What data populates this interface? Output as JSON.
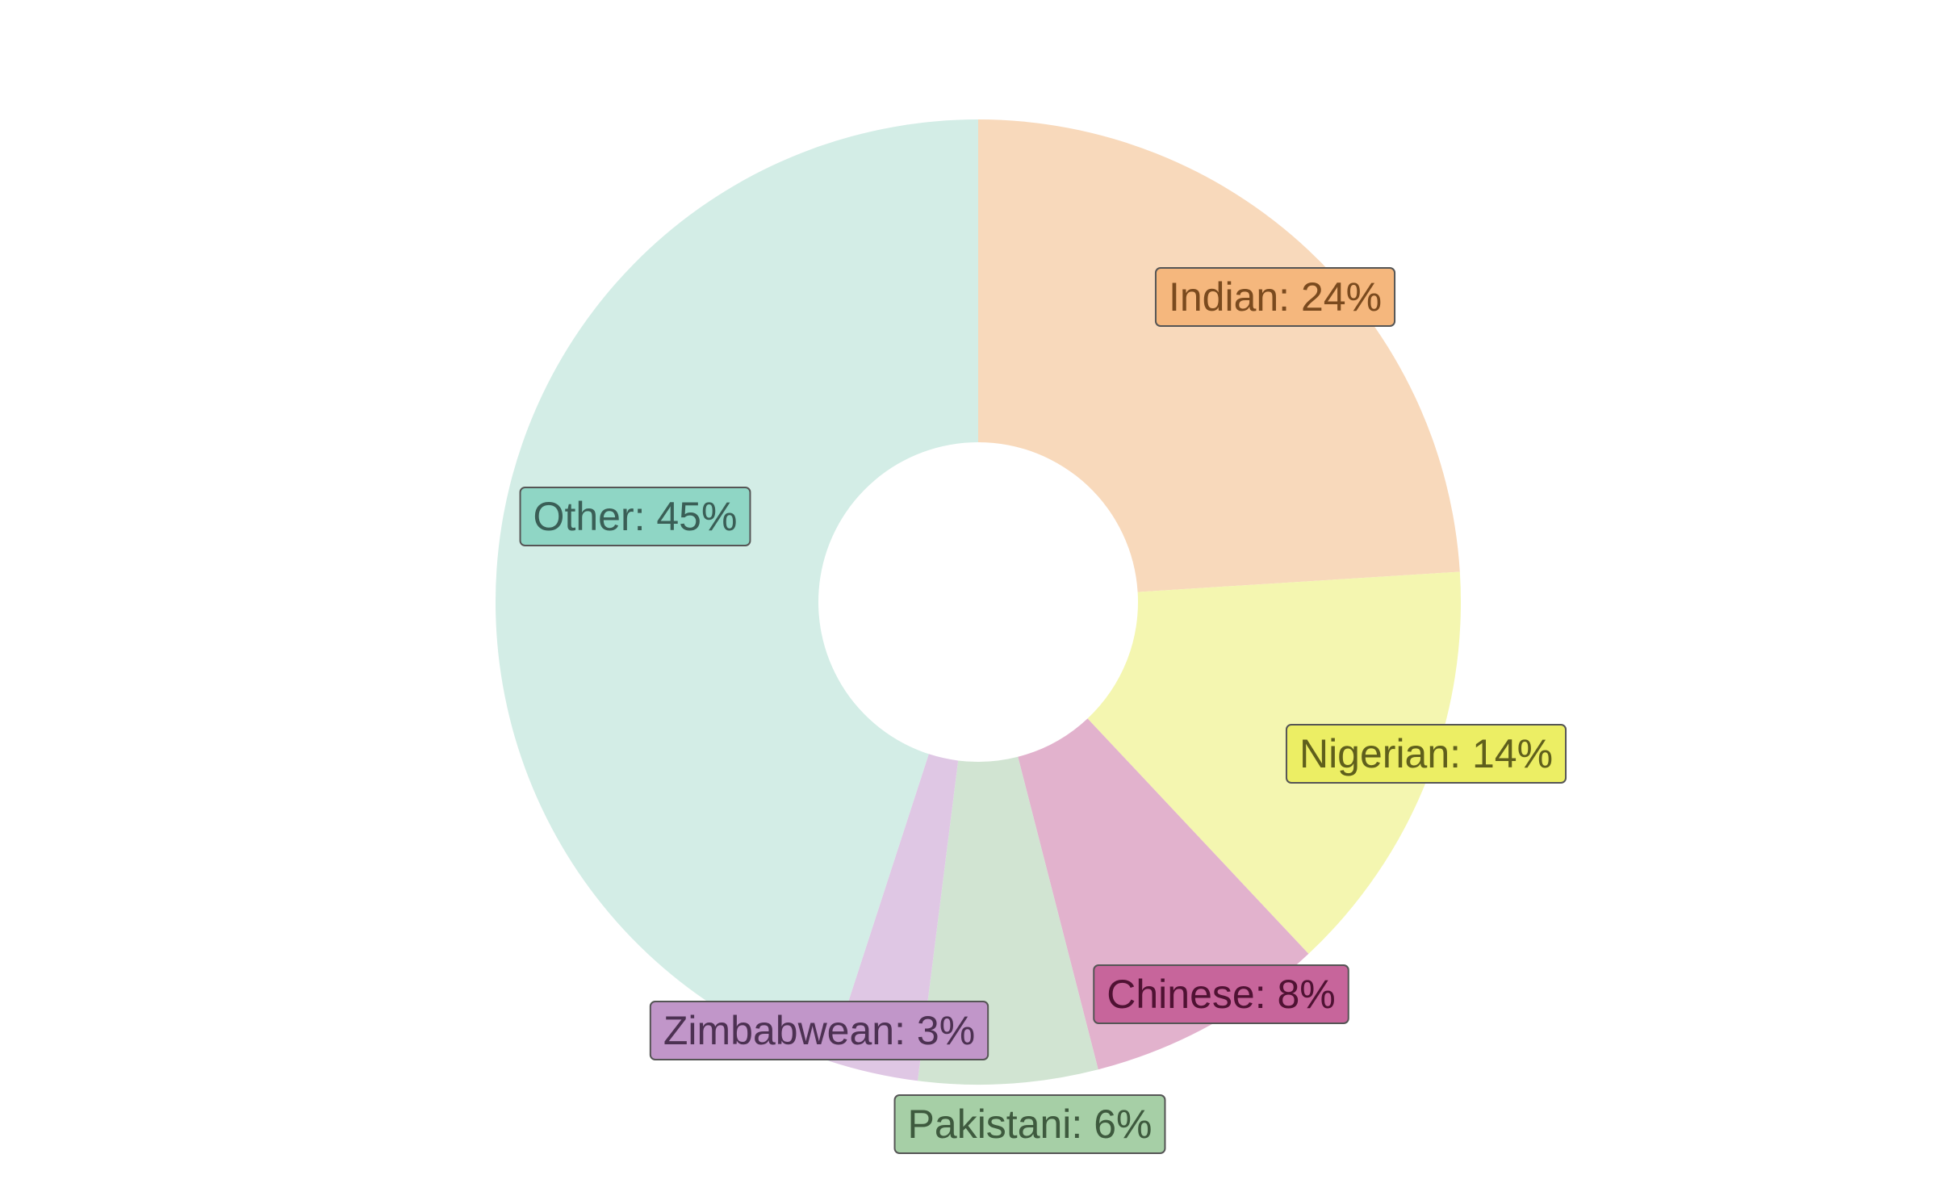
{
  "chart_data": {
    "type": "pie",
    "donut": true,
    "title": "",
    "slices": [
      {
        "label": "Indian: 24%",
        "name": "Indian",
        "value": 24,
        "color": "#f8d9bb",
        "label_bg": "#f5b77d",
        "label_text_color": "#7a4a1e"
      },
      {
        "label": "Nigerian: 14%",
        "name": "Nigerian",
        "value": 14,
        "color": "#f4f6b0",
        "label_bg": "#ecee64",
        "label_text_color": "#5f5f1c"
      },
      {
        "label": "Chinese: 8%",
        "name": "Chinese",
        "value": 8,
        "color": "#e2b2cd",
        "label_bg": "#c7659b",
        "label_text_color": "#4f1233"
      },
      {
        "label": "Pakistani: 6%",
        "name": "Pakistani",
        "value": 6,
        "color": "#d1e4d2",
        "label_bg": "#a6cfa6",
        "label_text_color": "#3e5a3e"
      },
      {
        "label": "Zimbabwean: 3%",
        "name": "Zimbabwean",
        "value": 3,
        "color": "#dfc7e4",
        "label_bg": "#c196c9",
        "label_text_color": "#4c3152"
      },
      {
        "label": "Other: 45%",
        "name": "Other",
        "value": 45,
        "color": "#d3ede6",
        "label_bg": "#8fd6c5",
        "label_text_color": "#3a5e56"
      }
    ],
    "start_angle": "12 o'clock",
    "direction": "clockwise",
    "legend": "none",
    "label_border_color": "#555555"
  }
}
